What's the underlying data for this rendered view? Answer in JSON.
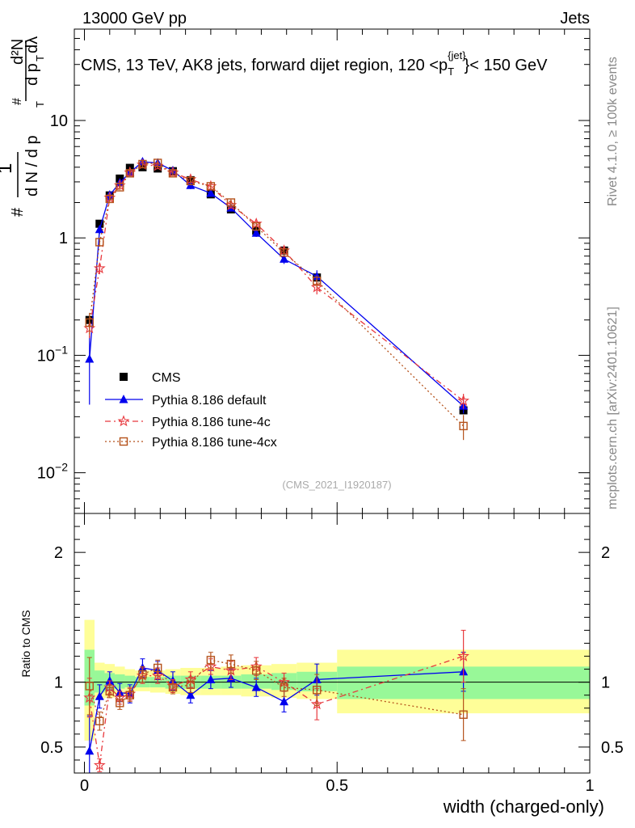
{
  "header": {
    "left": "13000 GeV pp",
    "right": "Jets"
  },
  "side_labels": {
    "rivet": "Rivet 4.1.0, ≥ 100k events",
    "mcplots": "mcplots.cern.ch [arXiv:2401.10621]"
  },
  "colors": {
    "data": "#000000",
    "default": "#0000ee",
    "tune4c": "#e8383d",
    "tune4cx": "#b5521b",
    "band_inner": "#98f898",
    "band_outer": "#fefe98"
  },
  "chart_data": [
    {
      "type": "scatter",
      "panel": "main",
      "title": "CMS, 13 TeV, AK8 jets, forward dijet region, 120 <p_T^{jet}< 150 GeV",
      "title_parts": {
        "prefix": "CMS, 13 TeV, AK8 jets, forward dijet region, 120 <p",
        "sub": "T",
        "sup": "{jet}",
        "suffix": "}< 150 GeV"
      },
      "ylabel": "1/(dN/dp_T) d²N/(dp_T dλ)",
      "ylabel_parts": {
        "one": "1",
        "dn": "d N / d p",
        "d2n": "d²N",
        "dpdl": "d p",
        "dl": "dλ",
        "t": "T",
        "hash": "#"
      },
      "xlabel": "width (charged-only)",
      "yscale": "log",
      "ylim": [
        0.0045,
        60
      ],
      "xlim": [
        -0.02,
        1.0
      ],
      "y_tick_labels": [
        {
          "v": 0.01,
          "base": "10",
          "exp": "−2"
        },
        {
          "v": 0.1,
          "base": "10",
          "exp": "−1"
        },
        {
          "v": 1,
          "base": "1",
          "exp": ""
        },
        {
          "v": 10,
          "base": "10",
          "exp": ""
        }
      ],
      "watermark": "(CMS_2021_I1920187)",
      "legend_position": "bottom-left",
      "x": [
        0.01,
        0.03,
        0.05,
        0.07,
        0.09,
        0.115,
        0.145,
        0.175,
        0.21,
        0.25,
        0.29,
        0.34,
        0.395,
        0.46,
        0.75
      ],
      "series": [
        {
          "name": "CMS",
          "key": "data",
          "style": "square",
          "values": [
            0.2,
            1.32,
            2.3,
            3.2,
            3.95,
            4.0,
            3.9,
            3.7,
            3.1,
            2.35,
            1.75,
            1.15,
            0.78,
            0.46,
            0.034
          ],
          "errors": [
            0.01,
            0.04,
            0.06,
            0.08,
            0.1,
            0.1,
            0.1,
            0.09,
            0.08,
            0.06,
            0.05,
            0.04,
            0.03,
            0.02,
            0.002
          ]
        },
        {
          "name": "Pythia 8.186 default",
          "key": "default",
          "style": "triangle",
          "dash": "",
          "values": [
            0.093,
            1.18,
            2.32,
            2.95,
            3.6,
            4.45,
            4.35,
            3.75,
            2.8,
            2.4,
            1.8,
            1.1,
            0.66,
            0.47,
            0.037
          ],
          "errors": [
            0.055,
            0.1,
            0.15,
            0.2,
            0.25,
            0.3,
            0.3,
            0.25,
            0.2,
            0.15,
            0.12,
            0.08,
            0.06,
            0.06,
            0.005
          ]
        },
        {
          "name": "Pythia 8.186 tune-4c",
          "key": "tune4c",
          "style": "star",
          "dash": "7,4,2,4",
          "values": [
            0.17,
            0.55,
            2.2,
            2.8,
            3.6,
            4.2,
            4.1,
            3.6,
            3.15,
            2.75,
            1.9,
            1.32,
            0.78,
            0.38,
            0.041
          ],
          "errors": [
            0.03,
            0.06,
            0.12,
            0.15,
            0.2,
            0.25,
            0.25,
            0.2,
            0.18,
            0.15,
            0.12,
            0.08,
            0.05,
            0.05,
            0.006
          ]
        },
        {
          "name": "Pythia 8.186 tune-4cx",
          "key": "tune4cx",
          "style": "open-square",
          "dash": "2,3",
          "values": [
            0.19,
            0.92,
            2.15,
            2.7,
            3.55,
            4.25,
            4.35,
            3.55,
            3.05,
            2.75,
            2.0,
            1.25,
            0.75,
            0.43,
            0.025
          ],
          "errors": [
            0.04,
            0.08,
            0.12,
            0.15,
            0.2,
            0.25,
            0.25,
            0.2,
            0.18,
            0.15,
            0.12,
            0.08,
            0.05,
            0.05,
            0.006
          ]
        }
      ]
    },
    {
      "type": "scatter",
      "panel": "ratio",
      "ylabel": "Ratio to CMS",
      "xlabel": "width (charged-only)",
      "ylim": [
        0.3,
        2.3
      ],
      "xlim": [
        -0.02,
        1.0
      ],
      "y_ticks": [
        0.5,
        1,
        2
      ],
      "y_tick_labels": [
        "0.5",
        "1",
        "2"
      ],
      "x_ticks": [
        0,
        0.5,
        1
      ],
      "x_tick_labels": [
        "0",
        "0.5",
        "1"
      ],
      "bands": [
        {
          "x0": 0.0,
          "x1": 0.02,
          "outer": [
            0.55,
            1.48
          ],
          "inner": [
            0.82,
            1.25
          ]
        },
        {
          "x0": 0.02,
          "x1": 0.04,
          "outer": [
            0.87,
            1.15
          ],
          "inner": [
            0.92,
            1.09
          ]
        },
        {
          "x0": 0.04,
          "x1": 0.06,
          "outer": [
            0.88,
            1.14
          ],
          "inner": [
            0.93,
            1.07
          ]
        },
        {
          "x0": 0.06,
          "x1": 0.08,
          "outer": [
            0.9,
            1.12
          ],
          "inner": [
            0.95,
            1.06
          ]
        },
        {
          "x0": 0.08,
          "x1": 0.1,
          "outer": [
            0.92,
            1.1
          ],
          "inner": [
            0.96,
            1.05
          ]
        },
        {
          "x0": 0.1,
          "x1": 0.13,
          "outer": [
            0.93,
            1.09
          ],
          "inner": [
            0.96,
            1.04
          ]
        },
        {
          "x0": 0.13,
          "x1": 0.16,
          "outer": [
            0.92,
            1.09
          ],
          "inner": [
            0.96,
            1.04
          ]
        },
        {
          "x0": 0.16,
          "x1": 0.19,
          "outer": [
            0.91,
            1.1
          ],
          "inner": [
            0.95,
            1.05
          ]
        },
        {
          "x0": 0.19,
          "x1": 0.23,
          "outer": [
            0.9,
            1.11
          ],
          "inner": [
            0.95,
            1.05
          ]
        },
        {
          "x0": 0.23,
          "x1": 0.27,
          "outer": [
            0.9,
            1.11
          ],
          "inner": [
            0.95,
            1.05
          ]
        },
        {
          "x0": 0.27,
          "x1": 0.31,
          "outer": [
            0.9,
            1.12
          ],
          "inner": [
            0.95,
            1.05
          ]
        },
        {
          "x0": 0.31,
          "x1": 0.37,
          "outer": [
            0.89,
            1.13
          ],
          "inner": [
            0.95,
            1.06
          ]
        },
        {
          "x0": 0.37,
          "x1": 0.42,
          "outer": [
            0.88,
            1.14
          ],
          "inner": [
            0.94,
            1.07
          ]
        },
        {
          "x0": 0.42,
          "x1": 0.5,
          "outer": [
            0.87,
            1.15
          ],
          "inner": [
            0.93,
            1.08
          ]
        },
        {
          "x0": 0.5,
          "x1": 1.0,
          "outer": [
            0.76,
            1.25
          ],
          "inner": [
            0.87,
            1.12
          ]
        }
      ],
      "series": [
        {
          "name": "Pythia 8.186 default",
          "key": "default",
          "values": [
            0.47,
            0.89,
            1.01,
            0.92,
            0.91,
            1.11,
            1.09,
            1.01,
            0.9,
            1.02,
            1.03,
            0.96,
            0.85,
            1.02,
            1.08
          ],
          "errors": [
            0.27,
            0.09,
            0.07,
            0.07,
            0.07,
            0.07,
            0.07,
            0.07,
            0.06,
            0.07,
            0.07,
            0.07,
            0.08,
            0.12,
            0.15
          ]
        },
        {
          "name": "Pythia 8.186 tune-4c",
          "key": "tune4c",
          "values": [
            0.88,
            0.36,
            0.96,
            0.88,
            0.91,
            1.05,
            1.05,
            0.97,
            1.02,
            1.12,
            1.09,
            1.12,
            1.0,
            0.83,
            1.2
          ],
          "errors": [
            0.15,
            0.05,
            0.05,
            0.05,
            0.05,
            0.06,
            0.06,
            0.05,
            0.06,
            0.06,
            0.07,
            0.07,
            0.07,
            0.12,
            0.2
          ]
        },
        {
          "name": "Pythia 8.186 tune-4cx",
          "key": "tune4cx",
          "values": [
            0.97,
            0.7,
            0.93,
            0.84,
            0.9,
            1.06,
            1.11,
            0.96,
            0.98,
            1.17,
            1.14,
            1.09,
            0.96,
            0.94,
            0.75
          ],
          "errors": [
            0.22,
            0.07,
            0.05,
            0.05,
            0.05,
            0.06,
            0.06,
            0.05,
            0.06,
            0.06,
            0.07,
            0.07,
            0.07,
            0.12,
            0.2
          ]
        }
      ]
    }
  ]
}
